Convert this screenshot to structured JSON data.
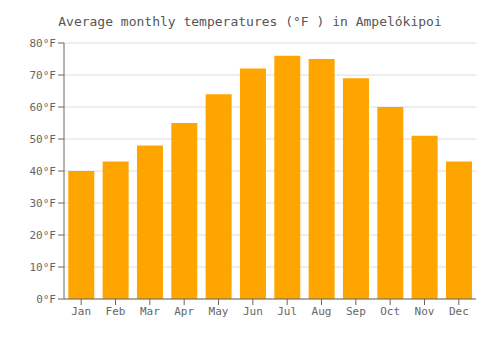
{
  "chart_data": {
    "type": "bar",
    "title": "Average monthly temperatures (°F ) in Ampelókipoi",
    "categories": [
      "Jan",
      "Feb",
      "Mar",
      "Apr",
      "May",
      "Jun",
      "Jul",
      "Aug",
      "Sep",
      "Oct",
      "Nov",
      "Dec"
    ],
    "values": [
      40,
      43,
      48,
      55,
      64,
      72,
      76,
      75,
      69,
      60,
      51,
      43
    ],
    "color": "#FFA500",
    "ylim": [
      0,
      80
    ],
    "yticks": [
      {
        "value": 0,
        "label": "0°F"
      },
      {
        "value": 10,
        "label": "10°F"
      },
      {
        "value": 20,
        "label": "20°F"
      },
      {
        "value": 30,
        "label": "30°F"
      },
      {
        "value": 40,
        "label": "40°F"
      },
      {
        "value": 50,
        "label": "50°F"
      },
      {
        "value": 60,
        "label": "60°F"
      },
      {
        "value": 70,
        "label": "70°F"
      },
      {
        "value": 80,
        "label": "80°F"
      }
    ],
    "grid": true
  }
}
